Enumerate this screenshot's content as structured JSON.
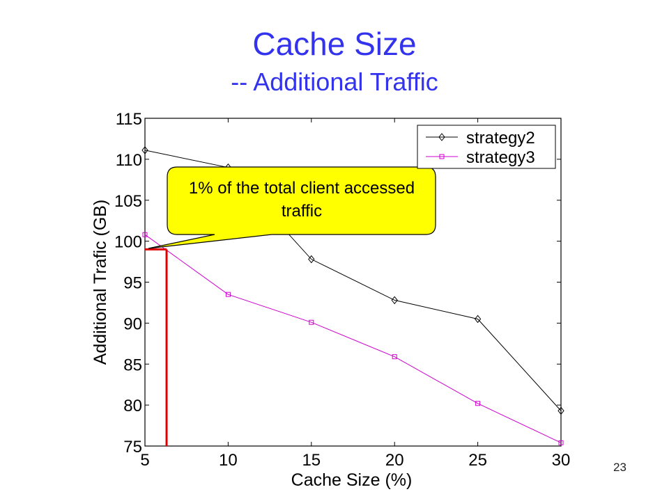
{
  "slide": {
    "title": "Cache Size",
    "subtitle": "-- Additional Traffic",
    "page_number": "23"
  },
  "callout": {
    "text": "1% of the total client accessed traffic",
    "fill_color": "#ffff00",
    "marker_value": 99,
    "marker_x": 6.3,
    "line_color": "#dd0000"
  },
  "chart_data": {
    "type": "line",
    "x": [
      5,
      10,
      15,
      20,
      25,
      30
    ],
    "xlabel": "Cache Size (%)",
    "ylabel": "Additional Trafic (GB)",
    "xlim": [
      5,
      30
    ],
    "ylim": [
      75,
      115
    ],
    "xticks": [
      "5",
      "10",
      "15",
      "20",
      "25",
      "30"
    ],
    "yticks": [
      "75",
      "80",
      "85",
      "90",
      "95",
      "100",
      "105",
      "110",
      "115"
    ],
    "grid": false,
    "legend_position": "top-right",
    "series": [
      {
        "name": "strategy2",
        "values": [
          111.1,
          109.0,
          97.8,
          92.8,
          90.5,
          79.3
        ],
        "color": "#000000",
        "marker": "diamond"
      },
      {
        "name": "strategy3",
        "values": [
          100.8,
          93.5,
          90.1,
          85.9,
          80.2,
          75.4
        ],
        "color": "#cc00cc",
        "marker": "square"
      }
    ]
  }
}
